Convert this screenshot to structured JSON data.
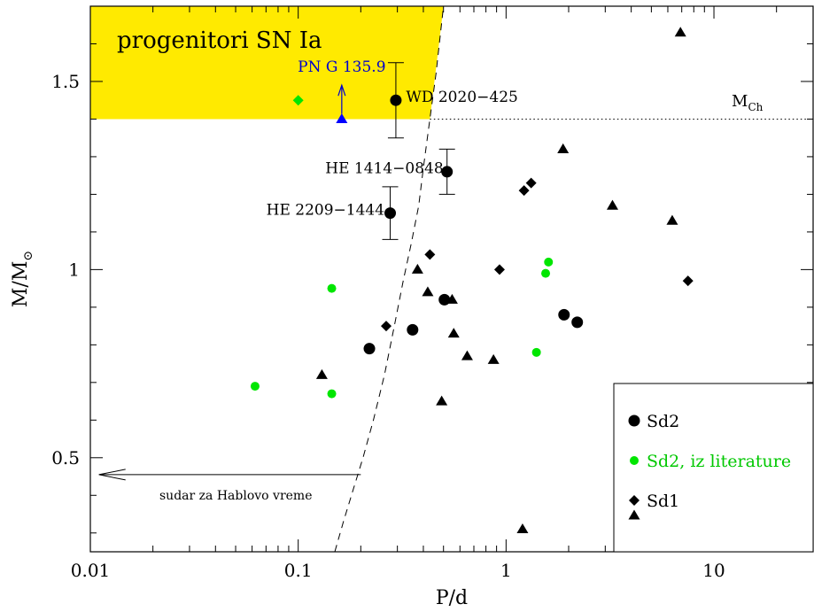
{
  "chart_data": {
    "type": "scatter",
    "x_scale": "log",
    "xlim": [
      0.01,
      30
    ],
    "ylim": [
      0.25,
      1.7
    ],
    "xlabel": "P/d",
    "ylabel_main": "M/M",
    "ylabel_sub": "⊙",
    "x_ticks": [
      {
        "value": 0.01,
        "label": "0.01"
      },
      {
        "value": 0.1,
        "label": "0.1"
      },
      {
        "value": 1,
        "label": "1"
      },
      {
        "value": 10,
        "label": "10"
      }
    ],
    "y_ticks": [
      {
        "value": 0.5,
        "label": "0.5"
      },
      {
        "value": 1.0,
        "label": "1"
      },
      {
        "value": 1.5,
        "label": "1.5"
      }
    ],
    "region": {
      "label": "progenitori SN Ia",
      "color": "#ffea00",
      "y_min": 1.4
    },
    "chandrasekhar": {
      "y": 1.4,
      "label_main": "M",
      "label_sub": "Ch"
    },
    "arrow_annotation": {
      "label": "sudar za Hablovo vreme",
      "x_start": 0.2,
      "x_end": 0.011,
      "y": 0.455
    },
    "series": [
      {
        "name": "Sd2",
        "marker": "circle",
        "color": "#000000",
        "points": [
          {
            "x": 0.295,
            "y": 1.45,
            "err": [
              1.35,
              1.55
            ]
          },
          {
            "x": 0.52,
            "y": 1.26,
            "err": [
              1.2,
              1.32
            ]
          },
          {
            "x": 0.277,
            "y": 1.15,
            "err": [
              1.08,
              1.22
            ]
          },
          {
            "x": 0.22,
            "y": 0.79
          },
          {
            "x": 0.355,
            "y": 0.84
          },
          {
            "x": 0.505,
            "y": 0.92
          },
          {
            "x": 1.9,
            "y": 0.88
          },
          {
            "x": 2.2,
            "y": 0.86
          }
        ]
      },
      {
        "name": "Sd2, iz literature",
        "marker": "circle-small",
        "color": "#00e600",
        "points": [
          {
            "x": 0.062,
            "y": 0.69
          },
          {
            "x": 0.145,
            "y": 0.95
          },
          {
            "x": 0.145,
            "y": 0.67
          },
          {
            "x": 1.4,
            "y": 0.78
          },
          {
            "x": 1.55,
            "y": 0.99
          },
          {
            "x": 1.6,
            "y": 1.02
          }
        ]
      },
      {
        "name": "Sd1",
        "marker": "diamond",
        "color": "#000000",
        "points": [
          {
            "x": 0.265,
            "y": 0.85
          },
          {
            "x": 0.43,
            "y": 1.04
          },
          {
            "x": 0.93,
            "y": 1.0
          },
          {
            "x": 1.22,
            "y": 1.21
          },
          {
            "x": 1.32,
            "y": 1.23
          },
          {
            "x": 7.5,
            "y": 0.97
          }
        ]
      },
      {
        "name": "",
        "marker": "triangle",
        "color": "#000000",
        "points": [
          {
            "x": 0.13,
            "y": 0.72
          },
          {
            "x": 0.375,
            "y": 1.0
          },
          {
            "x": 0.42,
            "y": 0.94
          },
          {
            "x": 0.49,
            "y": 0.65
          },
          {
            "x": 0.55,
            "y": 0.92
          },
          {
            "x": 0.56,
            "y": 0.83
          },
          {
            "x": 0.65,
            "y": 0.77
          },
          {
            "x": 0.87,
            "y": 0.76
          },
          {
            "x": 1.2,
            "y": 0.31
          },
          {
            "x": 1.88,
            "y": 1.32
          },
          {
            "x": 3.25,
            "y": 1.17
          },
          {
            "x": 6.3,
            "y": 1.13
          },
          {
            "x": 6.9,
            "y": 1.63
          }
        ]
      }
    ],
    "extra_points": [
      {
        "x": 0.1,
        "y": 1.45,
        "marker": "diamond",
        "color": "#00e600"
      },
      {
        "x": 0.162,
        "y": 1.4,
        "marker": "triangle",
        "color": "#0000ff",
        "upper_limit_arrow": true
      }
    ],
    "labels": [
      {
        "text": "PN G  135.9",
        "x": 0.162,
        "y": 1.54,
        "color": "#0000cc"
      },
      {
        "text": "WD 2020−425",
        "x": 0.33,
        "y": 1.46,
        "color": "#000000"
      },
      {
        "text": "HE 1414−0848",
        "x": 0.5,
        "y": 1.27,
        "color": "#000000"
      },
      {
        "text": "HE 2209−1444",
        "x": 0.26,
        "y": 1.16,
        "color": "#000000"
      }
    ],
    "dashed_curve": [
      [
        0.15,
        0.25
      ],
      [
        0.165,
        0.33
      ],
      [
        0.185,
        0.42
      ],
      [
        0.205,
        0.5
      ],
      [
        0.23,
        0.6
      ],
      [
        0.26,
        0.72
      ],
      [
        0.29,
        0.85
      ],
      [
        0.32,
        0.97
      ],
      [
        0.35,
        1.07
      ],
      [
        0.38,
        1.17
      ],
      [
        0.4,
        1.27
      ],
      [
        0.43,
        1.4
      ],
      [
        0.46,
        1.52
      ],
      [
        0.5,
        1.7
      ]
    ],
    "legend": {
      "position": "bottom-right",
      "entries": [
        "Sd2",
        "Sd2, iz literature",
        "Sd1"
      ]
    }
  }
}
